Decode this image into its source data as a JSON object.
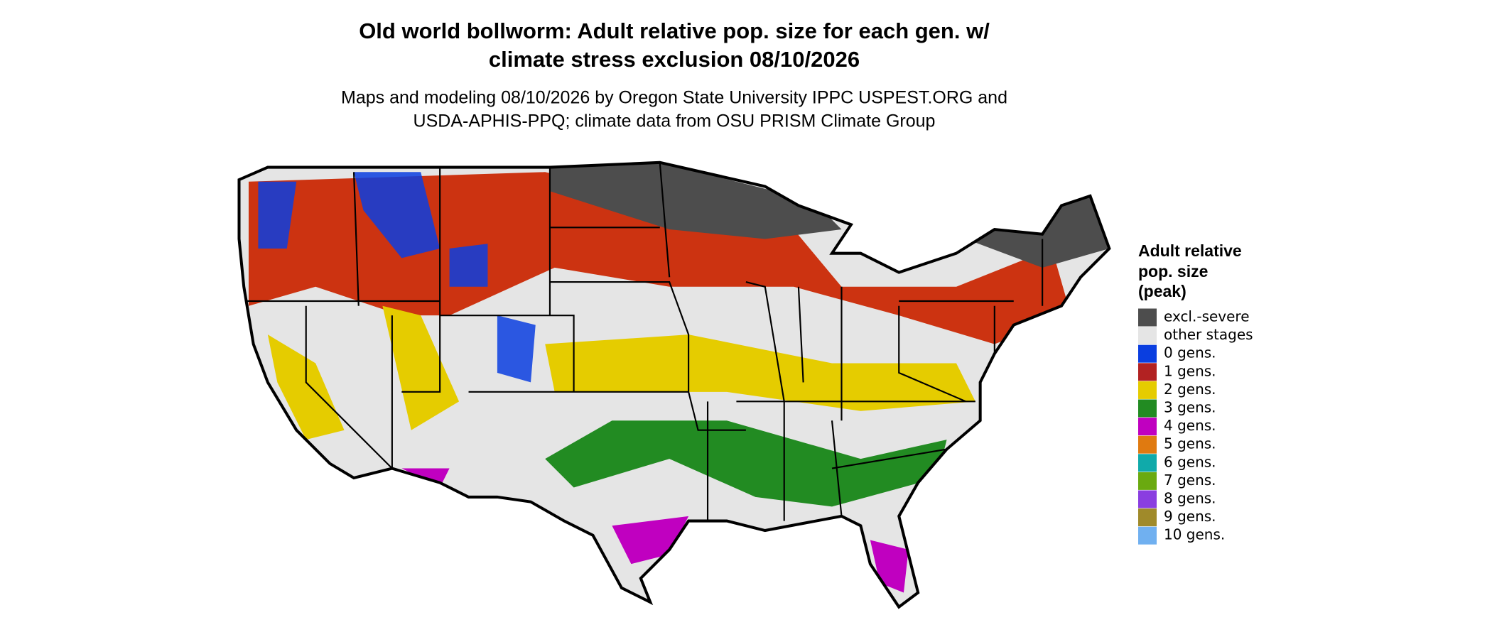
{
  "title": [
    "Old world bollworm: Adult relative pop. size for each gen. w/",
    "climate stress exclusion 08/10/2026"
  ],
  "subtitle": [
    "Maps and modeling 08/10/2026 by Oregon State University IPPC USPEST.ORG and",
    "USDA-APHIS-PPQ; climate data from OSU PRISM Climate Group"
  ],
  "legend": {
    "title": [
      "Adult relative",
      "pop. size",
      "(peak)"
    ],
    "items": [
      {
        "label": "excl.-severe",
        "color": "#4d4d4d"
      },
      {
        "label": "other stages",
        "color": "#e5e5e5"
      },
      {
        "label": "0 gens.",
        "color": "#0a3ee0"
      },
      {
        "label": "1 gens.",
        "color": "#b22222"
      },
      {
        "label": "2 gens.",
        "color": "#e5cc00"
      },
      {
        "label": "3 gens.",
        "color": "#228b22"
      },
      {
        "label": "4 gens.",
        "color": "#c000c0"
      },
      {
        "label": "5 gens.",
        "color": "#e07a10"
      },
      {
        "label": "6 gens.",
        "color": "#10aaaa"
      },
      {
        "label": "7 gens.",
        "color": "#6aaa10"
      },
      {
        "label": "8 gens.",
        "color": "#8a3ee0"
      },
      {
        "label": "9 gens.",
        "color": "#a08a2a"
      },
      {
        "label": "10 gens.",
        "color": "#70b0f0"
      }
    ]
  }
}
